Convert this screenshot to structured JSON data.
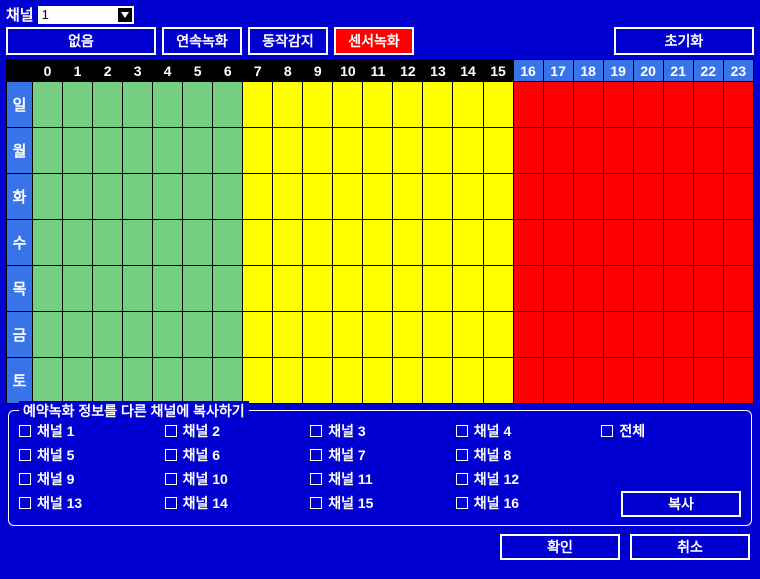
{
  "channelLabel": "채널",
  "channelValue": "1",
  "modes": {
    "none": "없음",
    "cont": "연속녹화",
    "motion": "동작감지",
    "sensor": "센서녹화",
    "reset": "초기화"
  },
  "hours": [
    "0",
    "1",
    "2",
    "3",
    "4",
    "5",
    "6",
    "7",
    "8",
    "9",
    "10",
    "11",
    "12",
    "13",
    "14",
    "15",
    "16",
    "17",
    "18",
    "19",
    "20",
    "21",
    "22",
    "23"
  ],
  "hourBlueStart": 16,
  "days": [
    "일",
    "월",
    "화",
    "수",
    "목",
    "금",
    "토"
  ],
  "cellColors": {
    "green": "#74d080",
    "yellow": "#ffff00",
    "red": "#ff0000"
  },
  "schedule": {
    "greenEnd": 6,
    "yellowEnd": 15
  },
  "copy": {
    "title": "예약녹화 정보를 다른 채널에 복사하기",
    "channels": [
      "채널 1",
      "채널 2",
      "채널 3",
      "채널 4",
      "채널 5",
      "채널 6",
      "채널 7",
      "채널 8",
      "채널 9",
      "채널 10",
      "채널 11",
      "채널 12",
      "채널 13",
      "채널 14",
      "채널 15",
      "채널 16"
    ],
    "allLabel": "전체",
    "copyBtn": "복사"
  },
  "buttons": {
    "ok": "확인",
    "cancel": "취소"
  },
  "colors": {
    "bg": "#0000d0",
    "headerBlue": "#3874e8",
    "black": "#000000",
    "white": "#ffffff"
  }
}
